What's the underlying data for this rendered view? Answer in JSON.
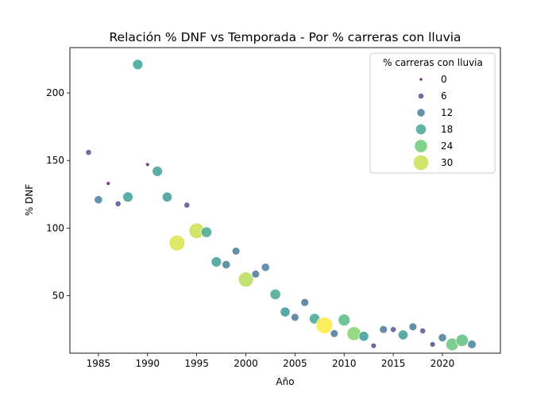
{
  "chart_data": {
    "type": "scatter",
    "title": "Relación % DNF vs Temporada - Por % carreras con lluvia",
    "xlabel": "Año",
    "ylabel": "% DNF",
    "xlim": [
      1982.1,
      2025.9
    ],
    "ylim": [
      7.5,
      233.5
    ],
    "x_ticks": [
      1985,
      1990,
      1995,
      2000,
      2005,
      2010,
      2015,
      2020
    ],
    "y_ticks": [
      50,
      100,
      150,
      200
    ],
    "grid": false,
    "legend": {
      "title": "% carreras con lluvia",
      "placement": "top-right",
      "entries": [
        0,
        6,
        12,
        18,
        24,
        30
      ]
    },
    "size_color_variable": "% carreras con lluvia",
    "size_color_range": [
      0,
      33
    ],
    "colormap": [
      "#440154",
      "#3b528b",
      "#21918c",
      "#5ec962",
      "#fde725"
    ],
    "points": [
      {
        "x": 1984,
        "y": 156,
        "rain": 6
      },
      {
        "x": 1985,
        "y": 121,
        "rain": 12
      },
      {
        "x": 1986,
        "y": 133,
        "rain": 1
      },
      {
        "x": 1987,
        "y": 118,
        "rain": 6
      },
      {
        "x": 1988,
        "y": 123,
        "rain": 17
      },
      {
        "x": 1989,
        "y": 221,
        "rain": 17
      },
      {
        "x": 1990,
        "y": 147,
        "rain": 1
      },
      {
        "x": 1991,
        "y": 142,
        "rain": 17
      },
      {
        "x": 1992,
        "y": 123,
        "rain": 16
      },
      {
        "x": 1993,
        "y": 89,
        "rain": 31
      },
      {
        "x": 1994,
        "y": 117,
        "rain": 6
      },
      {
        "x": 1995,
        "y": 98,
        "rain": 30
      },
      {
        "x": 1996,
        "y": 97,
        "rain": 18
      },
      {
        "x": 1997,
        "y": 75,
        "rain": 17
      },
      {
        "x": 1998,
        "y": 73,
        "rain": 12
      },
      {
        "x": 1999,
        "y": 83,
        "rain": 11
      },
      {
        "x": 2000,
        "y": 62,
        "rain": 29
      },
      {
        "x": 2001,
        "y": 66,
        "rain": 11
      },
      {
        "x": 2002,
        "y": 71,
        "rain": 12
      },
      {
        "x": 2003,
        "y": 51,
        "rain": 18
      },
      {
        "x": 2004,
        "y": 38,
        "rain": 16
      },
      {
        "x": 2005,
        "y": 34,
        "rain": 11
      },
      {
        "x": 2006,
        "y": 45,
        "rain": 11
      },
      {
        "x": 2007,
        "y": 33,
        "rain": 18
      },
      {
        "x": 2008,
        "y": 28,
        "rain": 33
      },
      {
        "x": 2009,
        "y": 22,
        "rain": 11
      },
      {
        "x": 2010,
        "y": 32,
        "rain": 21
      },
      {
        "x": 2011,
        "y": 22,
        "rain": 26
      },
      {
        "x": 2012,
        "y": 20,
        "rain": 16
      },
      {
        "x": 2013,
        "y": 13,
        "rain": 5
      },
      {
        "x": 2014,
        "y": 25,
        "rain": 11
      },
      {
        "x": 2015,
        "y": 25,
        "rain": 6
      },
      {
        "x": 2016,
        "y": 21,
        "rain": 16
      },
      {
        "x": 2017,
        "y": 27,
        "rain": 11
      },
      {
        "x": 2018,
        "y": 24,
        "rain": 6
      },
      {
        "x": 2019,
        "y": 14,
        "rain": 5
      },
      {
        "x": 2020,
        "y": 19,
        "rain": 12
      },
      {
        "x": 2021,
        "y": 14,
        "rain": 23
      },
      {
        "x": 2022,
        "y": 17,
        "rain": 22
      },
      {
        "x": 2023,
        "y": 14,
        "rain": 13
      }
    ]
  }
}
